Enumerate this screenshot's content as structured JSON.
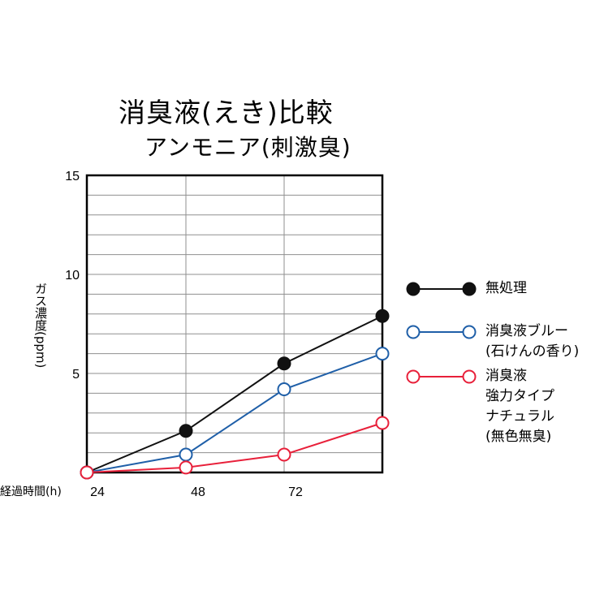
{
  "chart_data": {
    "type": "line",
    "title": "消臭液(えき)比較",
    "subtitle": "アンモニア(刺激臭)",
    "ylabel": "ガス濃度(ppm)",
    "xlabel": "経過時間(h)",
    "x_ticks": [
      "24",
      "48",
      "72"
    ],
    "y_ticks": [
      "15",
      "10",
      "5"
    ],
    "ylim": [
      0,
      15
    ],
    "x": [
      0,
      1,
      2,
      3
    ],
    "series": [
      {
        "name": "無処理",
        "name_lines": [
          "無処理"
        ],
        "color": "#111111",
        "filled": true,
        "values": [
          0,
          2.1,
          5.5,
          7.9
        ]
      },
      {
        "name": "消臭液ブルー(石けんの香り)",
        "name_lines": [
          "消臭液ブルー",
          "(石けんの香り)"
        ],
        "color": "#1f5fa8",
        "filled": false,
        "values": [
          0,
          0.9,
          4.2,
          6.0
        ]
      },
      {
        "name": "消臭液強力タイプナチュラル(無色無臭)",
        "name_lines": [
          "消臭液",
          "強力タイプ",
          "ナチュラル",
          "(無色無臭)"
        ],
        "color": "#e8203a",
        "filled": false,
        "values": [
          0,
          0.25,
          0.9,
          2.5
        ]
      }
    ],
    "grid": true,
    "legend_position": "right"
  }
}
